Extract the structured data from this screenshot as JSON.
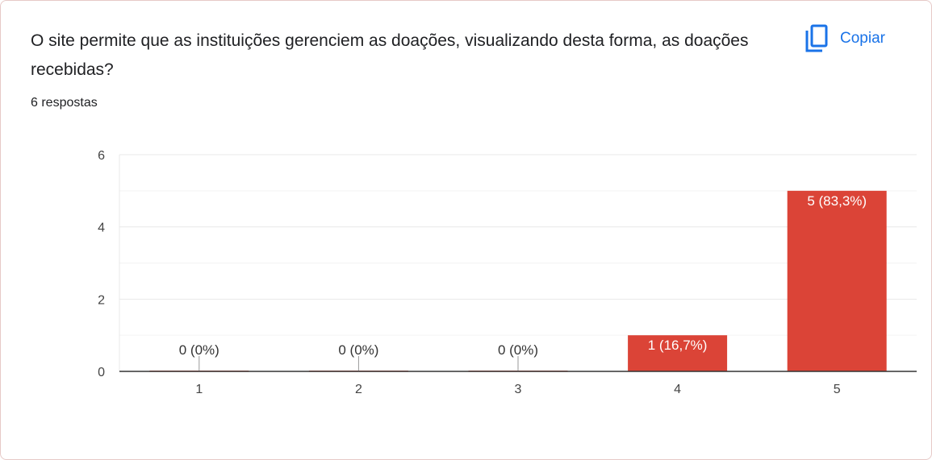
{
  "question": {
    "title": "O site permite que as instituições gerenciem as doações, visualizando desta forma, as doações recebidas?",
    "responses": "6 respostas"
  },
  "toolbar": {
    "copy_label": "Copiar",
    "copy_icon": "copy-icon"
  },
  "colors": {
    "bar": "#db4437",
    "accent": "#1a73e8",
    "grid": "#e8e8e8",
    "axis": "#333333"
  },
  "chart_data": {
    "type": "bar",
    "categories": [
      "1",
      "2",
      "3",
      "4",
      "5"
    ],
    "values": [
      0,
      0,
      0,
      1,
      5
    ],
    "data_labels": [
      "0 (0%)",
      "0 (0%)",
      "0 (0%)",
      "1 (16,7%)",
      "5 (83,3%)"
    ],
    "yticks": [
      0,
      2,
      4,
      6
    ],
    "ylim": [
      0,
      6
    ],
    "grid": true
  }
}
